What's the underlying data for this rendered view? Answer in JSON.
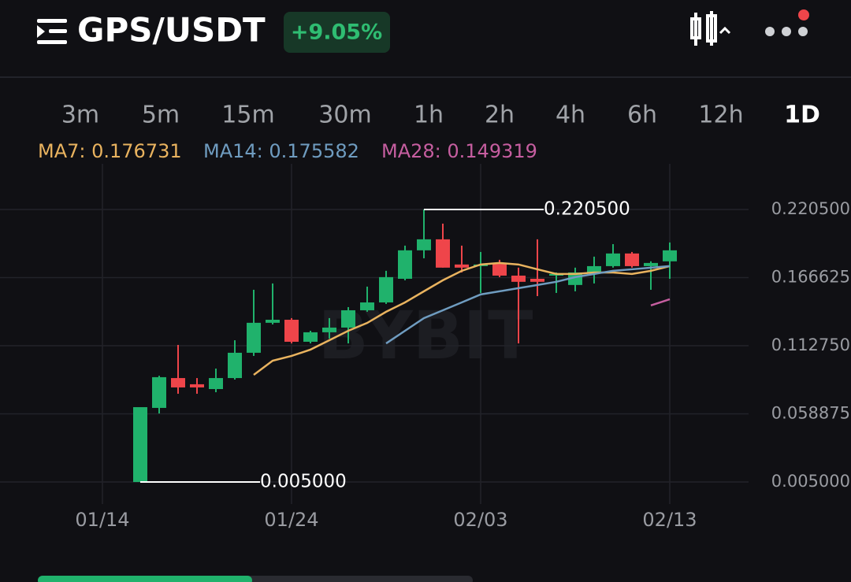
{
  "header": {
    "pair": "GPS/USDT",
    "change": "+9.05%"
  },
  "timeframes": [
    "3m",
    "5m",
    "15m",
    "30m",
    "1h",
    "2h",
    "4h",
    "6h",
    "12h",
    "1D"
  ],
  "selected_timeframe": "1D",
  "chart_data": {
    "type": "candlestick",
    "watermark": "BYBIT",
    "up_color": "#20b26c",
    "down_color": "#ef454a",
    "x": [
      "01/16",
      "01/17",
      "01/18",
      "01/19",
      "01/20",
      "01/21",
      "01/22",
      "01/23",
      "01/24",
      "01/25",
      "01/26",
      "01/27",
      "01/28",
      "01/29",
      "01/30",
      "01/31",
      "02/01",
      "02/02",
      "02/03",
      "02/04",
      "02/05",
      "02/06",
      "02/07",
      "02/08",
      "02/09",
      "02/10",
      "02/11",
      "02/12",
      "02/13"
    ],
    "open": [
      0.005,
      0.0636,
      0.0872,
      0.0823,
      0.0785,
      0.0872,
      0.1072,
      0.1309,
      0.1333,
      0.1159,
      0.1234,
      0.1271,
      0.1408,
      0.147,
      0.1657,
      0.1882,
      0.1969,
      0.177,
      0.1757,
      0.1782,
      0.1682,
      0.1657,
      0.1682,
      0.1608,
      0.1707,
      0.1757,
      0.1857,
      0.1757,
      0.1795
    ],
    "high": [
      0.0642,
      0.089,
      0.1134,
      0.0872,
      0.0947,
      0.1171,
      0.157,
      0.162,
      0.1346,
      0.1246,
      0.1346,
      0.1433,
      0.1595,
      0.172,
      0.1919,
      0.2205,
      0.2093,
      0.1919,
      0.1869,
      0.1807,
      0.1745,
      0.1969,
      0.1707,
      0.1745,
      0.1832,
      0.1931,
      0.1869,
      0.1795,
      0.1944
    ],
    "low": [
      0.005,
      0.0592,
      0.0748,
      0.0748,
      0.076,
      0.086,
      0.1047,
      0.1296,
      0.1146,
      0.1146,
      0.1184,
      0.1146,
      0.1396,
      0.1458,
      0.1645,
      0.1819,
      0.1745,
      0.1707,
      0.1545,
      0.167,
      0.1146,
      0.152,
      0.1545,
      0.1558,
      0.162,
      0.1745,
      0.1745,
      0.157,
      0.1657
    ],
    "close": [
      0.0642,
      0.0879,
      0.0798,
      0.0798,
      0.0872,
      0.1072,
      0.1309,
      0.1333,
      0.1159,
      0.1234,
      0.1271,
      0.1408,
      0.147,
      0.167,
      0.1882,
      0.1969,
      0.1745,
      0.1745,
      0.177,
      0.1682,
      0.1633,
      0.1633,
      0.1695,
      0.1707,
      0.1757,
      0.1857,
      0.1757,
      0.1782,
      0.1882
    ],
    "overlays": [
      {
        "label": "MA7: 0.176731",
        "color": "#e9b35f",
        "values": [
          null,
          null,
          null,
          null,
          null,
          null,
          0.0897,
          0.1009,
          0.1047,
          0.1097,
          0.1171,
          0.1246,
          0.1308,
          0.1396,
          0.147,
          0.1558,
          0.1645,
          0.172,
          0.177,
          0.1782,
          0.177,
          0.1732,
          0.1695,
          0.1695,
          0.1707,
          0.1707,
          0.1695,
          0.172,
          0.1757
        ]
      },
      {
        "label": "MA14: 0.175582",
        "color": "#6f9cc0",
        "values": [
          null,
          null,
          null,
          null,
          null,
          null,
          null,
          null,
          null,
          null,
          null,
          null,
          null,
          0.1146,
          0.1246,
          0.1346,
          0.1408,
          0.147,
          0.1533,
          0.1558,
          0.1583,
          0.1608,
          0.1633,
          0.167,
          0.1695,
          0.172,
          0.1732,
          0.1745,
          0.1757
        ]
      },
      {
        "label": "MA28: 0.149319",
        "color": "#c65ea0",
        "values": [
          null,
          null,
          null,
          null,
          null,
          null,
          null,
          null,
          null,
          null,
          null,
          null,
          null,
          null,
          null,
          null,
          null,
          null,
          null,
          null,
          null,
          null,
          null,
          null,
          null,
          null,
          null,
          0.1446,
          0.1495
        ]
      }
    ],
    "ylim": [
      -0.0124,
      0.2566
    ],
    "yticks": [
      {
        "value": 0.2205,
        "label": "0.220500"
      },
      {
        "value": 0.166625,
        "label": "0.166625"
      },
      {
        "value": 0.11275,
        "label": "0.112750"
      },
      {
        "value": 0.058875,
        "label": "0.058875"
      },
      {
        "value": 0.005,
        "label": "0.005000"
      }
    ],
    "xticks": [
      "01/14",
      "01/24",
      "02/03",
      "02/13"
    ],
    "grid": true,
    "high_marker": {
      "value": 0.2205,
      "label": "0.220500"
    },
    "low_marker": {
      "value": 0.005,
      "label": "0.005000"
    }
  }
}
